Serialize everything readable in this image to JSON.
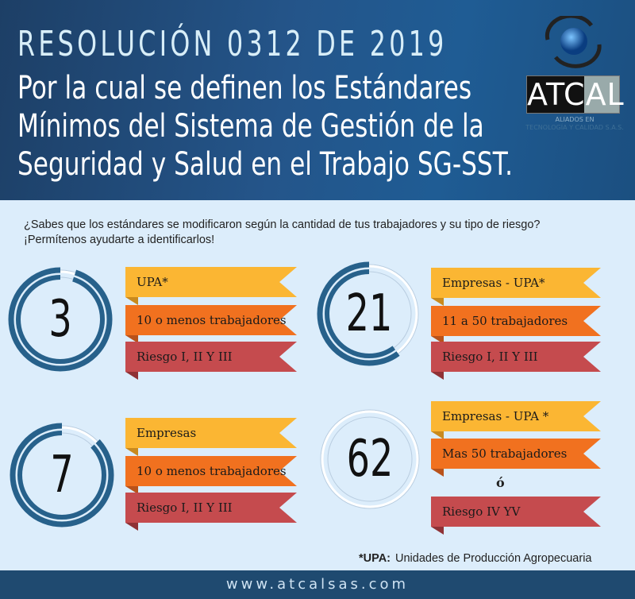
{
  "header": {
    "title": "RESOLUCIÓN 0312 DE 2019",
    "subtitle_lines": [
      "Por la cual se definen los Estándares",
      "Mínimos del Sistema de Gestión de la",
      "Seguridad y Salud en el Trabajo SG-SST."
    ],
    "logo": {
      "name": "ATCAL",
      "tagline1": "ALIADOS EN",
      "tagline2": "TECNOLOGÍA Y CALIDAD S.A.S."
    }
  },
  "intro": {
    "line1": "¿Sabes que los estándares se modificaron según la cantidad de tus trabajadores y su tipo de riesgo?",
    "line2": "¡Permítenos ayudarte a identificarlos!"
  },
  "colors": {
    "ring": "#27618b",
    "yellow": "#fbb633",
    "orange": "#f1711f",
    "red": "#c54b4e",
    "header": "#1f4f80",
    "footer": "#1f4a70"
  },
  "groups": [
    {
      "number": "3",
      "ring_fill": 0.95,
      "labels": [
        "UPA*",
        "10 o menos trabajadores",
        "Riesgo I, II Y III"
      ]
    },
    {
      "number": "21",
      "ring_fill": 0.6,
      "labels": [
        "Empresas - UPA*",
        "11 a 50 trabajadores",
        "Riesgo I, II Y III"
      ]
    },
    {
      "number": "7",
      "ring_fill": 0.87,
      "labels": [
        "Empresas",
        "10 o menos trabajadores",
        "Riesgo I, II Y III"
      ]
    },
    {
      "number": "62",
      "ring_fill": 0,
      "labels": [
        "Empresas - UPA *",
        "Mas 50 trabajadores",
        "Riesgo IV YV"
      ],
      "connector": "ó"
    }
  ],
  "note": {
    "term": "*UPA:",
    "definition": "Unidades de Producción Agropecuaria"
  },
  "footer": {
    "url": "www.atcalsas.com"
  }
}
